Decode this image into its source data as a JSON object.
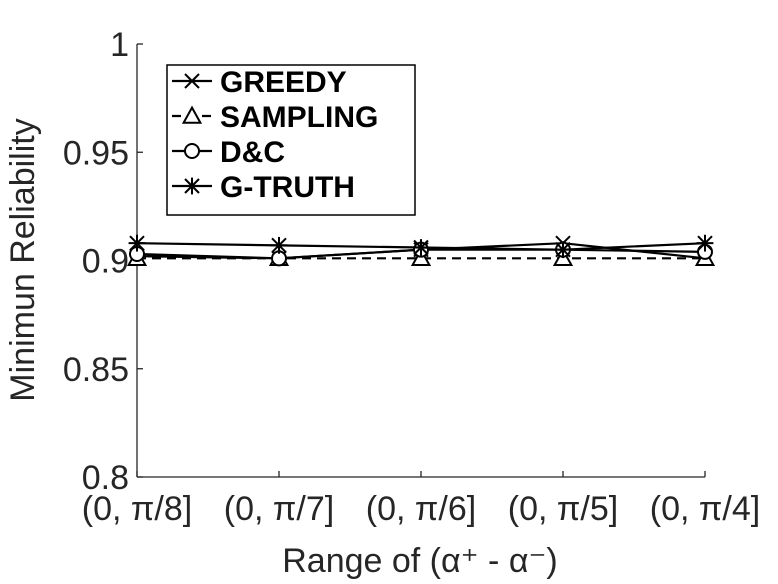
{
  "chart_data": {
    "type": "line",
    "categories": [
      "(0, π/8]",
      "(0, π/7]",
      "(0, π/6]",
      "(0, π/5]",
      "(0, π/4]"
    ],
    "xlabel": "Range of (α⁺ - α⁻)",
    "ylabel": "Minimun Reliability",
    "ylim": [
      0.8,
      1.0
    ],
    "yticks": [
      "0.8",
      "0.85",
      "0.9",
      "0.95",
      "1"
    ],
    "grid": false,
    "legend_position": "top-left",
    "series": [
      {
        "name": "GREEDY",
        "marker": "x",
        "line": "solid",
        "values": [
          0.902,
          0.901,
          0.905,
          0.908,
          0.901
        ]
      },
      {
        "name": "SAMPLING",
        "marker": "triangle",
        "line": "dashed",
        "values": [
          0.901,
          0.901,
          0.901,
          0.901,
          0.901
        ]
      },
      {
        "name": "D&C",
        "marker": "circle",
        "line": "solid",
        "values": [
          0.903,
          0.901,
          0.905,
          0.905,
          0.904
        ]
      },
      {
        "name": "G-TRUTH",
        "marker": "star",
        "line": "solid",
        "values": [
          0.908,
          0.907,
          0.906,
          0.905,
          0.908
        ]
      }
    ],
    "colors": {
      "axis": "#262626",
      "series": "#000000"
    }
  }
}
